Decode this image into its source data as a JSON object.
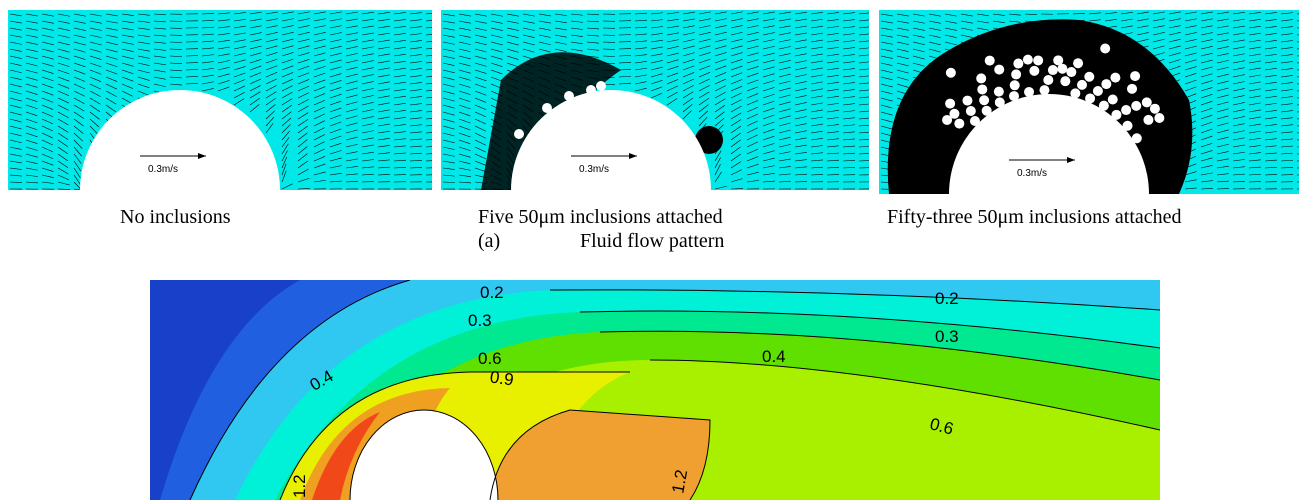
{
  "panels": [
    {
      "caption": "No inclusions",
      "velocity_label": "0.3m/s"
    },
    {
      "caption": "Five 50μm inclusions attached",
      "velocity_label": "0.3m/s"
    },
    {
      "caption": "Fifty-three 50μm inclusions attached",
      "velocity_label": "0.3m/s"
    }
  ],
  "subfigure": {
    "marker": "(a)",
    "title": "Fluid flow pattern"
  },
  "contour": {
    "labels": [
      "0.2",
      "0.2",
      "0.3",
      "0.3",
      "0.4",
      "0.4",
      "0.6",
      "0.6",
      "0.9",
      "1.2",
      "1.2"
    ]
  },
  "colors": {
    "flow_background": "#00e8e8",
    "arrow": "#000000",
    "inclusion": "#ffffff"
  }
}
